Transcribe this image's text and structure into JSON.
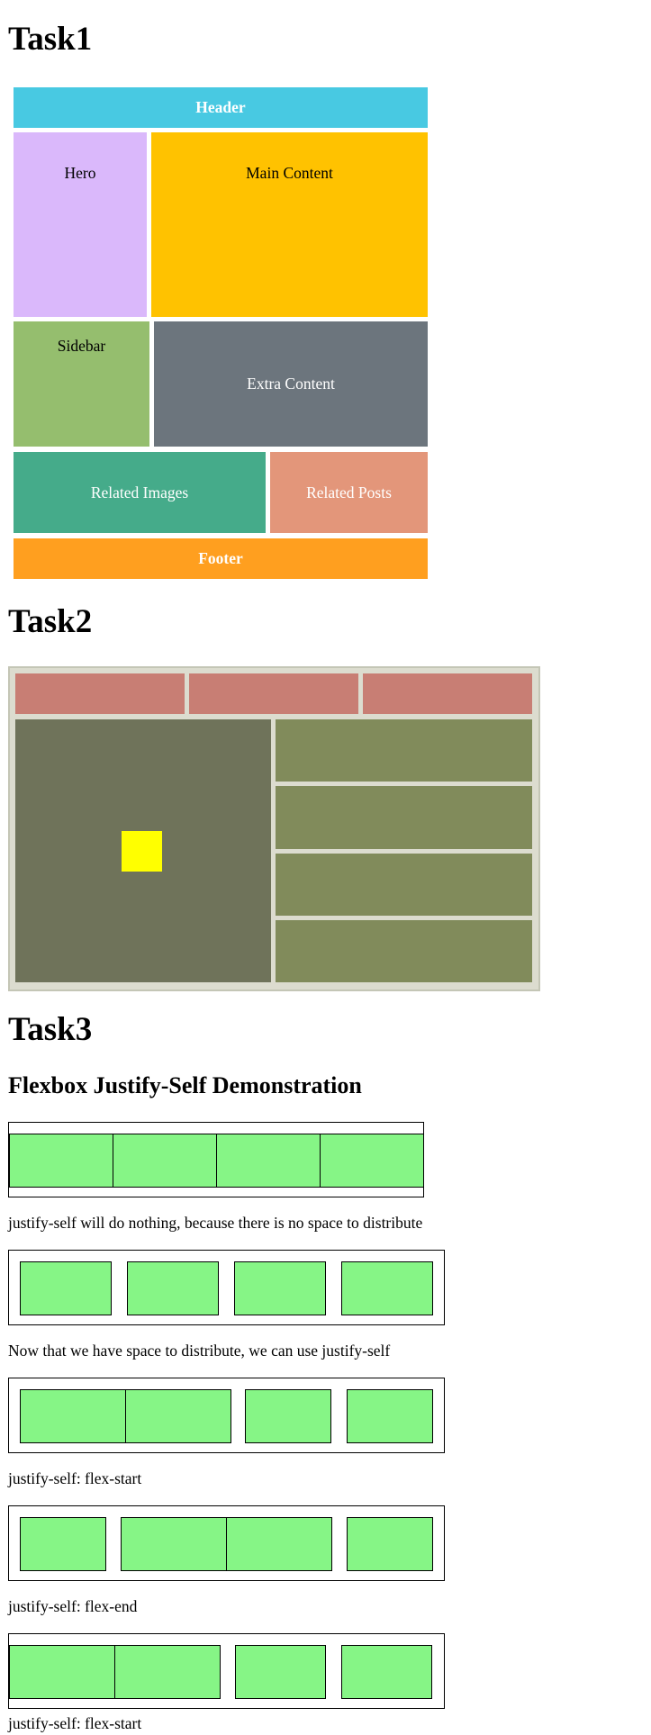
{
  "task1": {
    "title": "Task1",
    "header": "Header",
    "hero": "Hero",
    "main_content": "Main Content",
    "sidebar": "Sidebar",
    "extra_content": "Extra Content",
    "related_images": "Related Images",
    "related_posts": "Related Posts",
    "footer": "Footer",
    "colors": {
      "header": "#48c9e2",
      "hero": "#dab8fb",
      "main": "#ffc200",
      "sidebar": "#95be6e",
      "extra": "#6c757d",
      "related_images": "#45ab8a",
      "related_posts": "#e3967a",
      "footer": "#ff9f1f"
    }
  },
  "task2": {
    "title": "Task2",
    "colors": {
      "frame": "#dcdccf",
      "top_boxes": "#c87e74",
      "big_box": "#6f735a",
      "right_boxes": "#818b5b",
      "center_square": "#ffff00"
    }
  },
  "task3": {
    "title": "Task3",
    "subtitle": "Flexbox Justify-Self Demonstration",
    "captions": [
      "justify-self will do nothing, because there is no space to distribute",
      "Now that we have space to distribute, we can use justify-self",
      "justify-self: flex-start",
      "justify-self: flex-end",
      "justify-self: flex-start"
    ],
    "colors": {
      "item": "#86f586"
    }
  }
}
